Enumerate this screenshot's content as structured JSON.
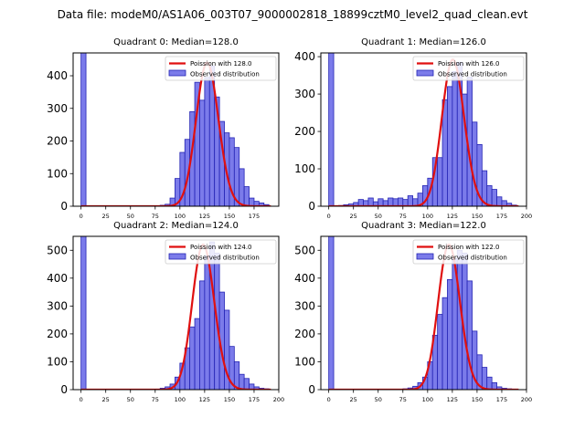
{
  "suptitle": "Data file: modeM0/AS1A06_003T07_9000002818_18899cztM0_level2_quad_clean.evt",
  "colors": {
    "bar_fill": "#7b7bea",
    "bar_edge": "#2323b4",
    "poisson": "#e01010",
    "axis": "#000000"
  },
  "chart_data": [
    {
      "type": "bar",
      "title": "Quadrant 0: Median=128.0",
      "median": 128.0,
      "legend": {
        "line_label": "Poission with 128.0",
        "bar_label": "Observed distribution",
        "placement": "top-right"
      },
      "xlim": [
        -8,
        200
      ],
      "ylim": [
        0,
        470
      ],
      "xticks": [
        0,
        25,
        50,
        75,
        100,
        125,
        150,
        175
      ],
      "yticks": [
        0,
        100,
        200,
        300,
        400
      ],
      "bin_width": 5,
      "bins": [
        0,
        5,
        10,
        15,
        20,
        25,
        30,
        35,
        40,
        45,
        50,
        55,
        60,
        65,
        70,
        75,
        80,
        85,
        90,
        95,
        100,
        105,
        110,
        115,
        120,
        125,
        130,
        135,
        140,
        145,
        150,
        155,
        160,
        165,
        170,
        175,
        180,
        185
      ],
      "counts": [
        470,
        0,
        0,
        0,
        0,
        0,
        0,
        0,
        0,
        0,
        0,
        0,
        0,
        0,
        0,
        0,
        3,
        6,
        25,
        85,
        165,
        205,
        290,
        380,
        325,
        395,
        430,
        335,
        260,
        225,
        210,
        180,
        115,
        60,
        25,
        15,
        10,
        5
      ],
      "poisson_peak": 440
    },
    {
      "type": "bar",
      "title": "Quadrant 1: Median=126.0",
      "median": 126.0,
      "legend": {
        "line_label": "Poission with 126.0",
        "bar_label": "Observed distribution",
        "placement": "top-right"
      },
      "xlim": [
        -8,
        200
      ],
      "ylim": [
        0,
        410
      ],
      "xticks": [
        0,
        25,
        50,
        75,
        100,
        125,
        150,
        175,
        200
      ],
      "yticks": [
        0,
        100,
        200,
        300,
        400
      ],
      "bin_width": 5,
      "bins": [
        0,
        5,
        10,
        15,
        20,
        25,
        30,
        35,
        40,
        45,
        50,
        55,
        60,
        65,
        70,
        75,
        80,
        85,
        90,
        95,
        100,
        105,
        110,
        115,
        120,
        125,
        130,
        135,
        140,
        145,
        150,
        155,
        160,
        165,
        170,
        175,
        180,
        185
      ],
      "counts": [
        410,
        0,
        2,
        4,
        6,
        10,
        18,
        15,
        22,
        12,
        20,
        15,
        22,
        20,
        22,
        18,
        28,
        20,
        35,
        55,
        75,
        130,
        130,
        285,
        320,
        360,
        385,
        300,
        345,
        225,
        165,
        95,
        55,
        45,
        25,
        15,
        8,
        3
      ],
      "poisson_peak": 392
    },
    {
      "type": "bar",
      "title": "Quadrant 2: Median=124.0",
      "median": 124.0,
      "legend": {
        "line_label": "Poission with 124.0",
        "bar_label": "Observed distribution",
        "placement": "top-right"
      },
      "xlim": [
        -8,
        200
      ],
      "ylim": [
        0,
        550
      ],
      "xticks": [
        0,
        25,
        50,
        75,
        100,
        125,
        150,
        175,
        200
      ],
      "yticks": [
        0,
        100,
        200,
        300,
        400,
        500
      ],
      "bin_width": 5,
      "bins": [
        0,
        5,
        10,
        15,
        20,
        25,
        30,
        35,
        40,
        45,
        50,
        55,
        60,
        65,
        70,
        75,
        80,
        85,
        90,
        95,
        100,
        105,
        110,
        115,
        120,
        125,
        130,
        135,
        140,
        145,
        150,
        155,
        160,
        165,
        170,
        175,
        180,
        185
      ],
      "counts": [
        550,
        0,
        0,
        0,
        0,
        0,
        0,
        0,
        0,
        0,
        0,
        0,
        0,
        0,
        0,
        2,
        5,
        10,
        20,
        45,
        95,
        150,
        225,
        255,
        390,
        480,
        530,
        490,
        350,
        285,
        155,
        100,
        55,
        40,
        20,
        10,
        5,
        3
      ],
      "poisson_peak": 520
    },
    {
      "type": "bar",
      "title": "Quadrant 3: Median=122.0",
      "median": 122.0,
      "legend": {
        "line_label": "Poission with 122.0",
        "bar_label": "Observed distribution",
        "placement": "top-right"
      },
      "xlim": [
        -8,
        200
      ],
      "ylim": [
        0,
        550
      ],
      "xticks": [
        0,
        25,
        50,
        75,
        100,
        125,
        150,
        175,
        200
      ],
      "yticks": [
        0,
        100,
        200,
        300,
        400,
        500
      ],
      "bin_width": 5,
      "bins": [
        0,
        5,
        10,
        15,
        20,
        25,
        30,
        35,
        40,
        45,
        50,
        55,
        60,
        65,
        70,
        75,
        80,
        85,
        90,
        95,
        100,
        105,
        110,
        115,
        120,
        125,
        130,
        135,
        140,
        145,
        150,
        155,
        160,
        165,
        170,
        175,
        180,
        185
      ],
      "counts": [
        550,
        0,
        0,
        0,
        0,
        0,
        0,
        0,
        0,
        0,
        0,
        0,
        0,
        0,
        0,
        3,
        6,
        12,
        25,
        45,
        100,
        195,
        270,
        330,
        395,
        470,
        500,
        490,
        390,
        210,
        125,
        80,
        45,
        25,
        10,
        5,
        3,
        2
      ],
      "poisson_peak": 520
    }
  ]
}
